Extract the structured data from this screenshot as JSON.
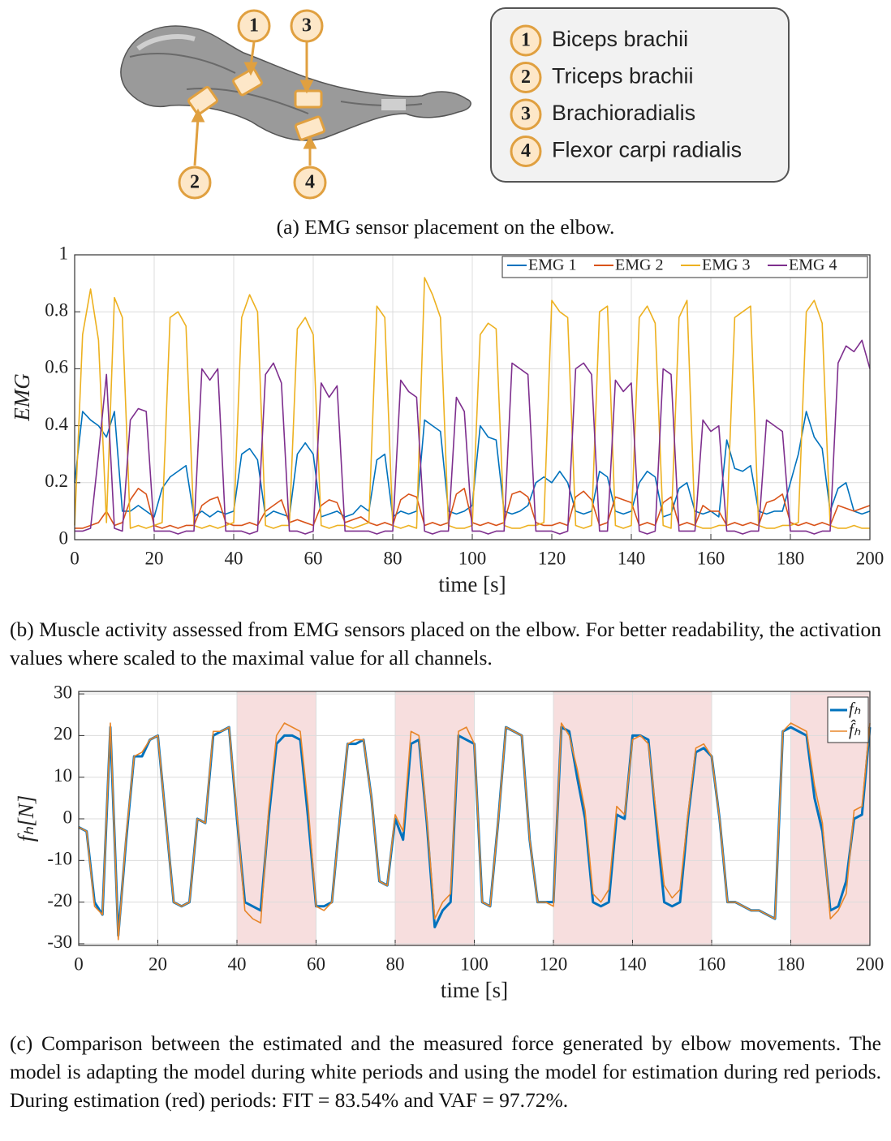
{
  "diagram": {
    "markers": [
      "1",
      "2",
      "3",
      "4"
    ],
    "legend": {
      "items": [
        {
          "number": "1",
          "label": "Biceps brachii"
        },
        {
          "number": "2",
          "label": "Triceps brachii"
        },
        {
          "number": "3",
          "label": "Brachioradialis"
        },
        {
          "number": "4",
          "label": "Flexor carpi radialis"
        }
      ]
    }
  },
  "captions": [
    "(a) EMG sensor placement on the elbow.",
    "(b) Muscle activity assessed from EMG sensors placed on the elbow. For better readability, the activation values where scaled to the maximal value for all channels.",
    "(c) Comparison between the estimated and the measured force generated by elbow movements. The model is adapting the model during white periods and using the model for estimation during red periods. During estimation (red) periods: FIT = 83.54% and VAF = 97.72%."
  ],
  "chart_data": [
    {
      "type": "line",
      "xlabel": "time [s]",
      "ylabel": "EMG",
      "xlim": [
        0,
        200
      ],
      "ylim": [
        0,
        1
      ],
      "xticks": [
        0,
        20,
        40,
        60,
        80,
        100,
        120,
        140,
        160,
        180,
        200
      ],
      "yticks": [
        0,
        0.2,
        0.4,
        0.6,
        0.8,
        1
      ],
      "grid": true,
      "legend": "top-right",
      "x": [
        0,
        2,
        4,
        6,
        8,
        10,
        12,
        14,
        16,
        18,
        20,
        22,
        24,
        26,
        28,
        30,
        32,
        34,
        36,
        38,
        40,
        42,
        44,
        46,
        48,
        50,
        52,
        54,
        56,
        58,
        60,
        62,
        64,
        66,
        68,
        70,
        72,
        74,
        76,
        78,
        80,
        82,
        84,
        86,
        88,
        90,
        92,
        94,
        96,
        98,
        100,
        102,
        104,
        106,
        108,
        110,
        112,
        114,
        116,
        118,
        120,
        122,
        124,
        126,
        128,
        130,
        132,
        134,
        136,
        138,
        140,
        142,
        144,
        146,
        148,
        150,
        152,
        154,
        156,
        158,
        160,
        162,
        164,
        166,
        168,
        170,
        172,
        174,
        176,
        178,
        180,
        182,
        184,
        186,
        188,
        190,
        192,
        194,
        196,
        198,
        200
      ],
      "series": [
        {
          "name": "EMG 1",
          "color": "#0072bd",
          "values": [
            0.2,
            0.45,
            0.42,
            0.4,
            0.36,
            0.45,
            0.1,
            0.1,
            0.12,
            0.1,
            0.08,
            0.18,
            0.22,
            0.24,
            0.26,
            0.08,
            0.1,
            0.08,
            0.1,
            0.09,
            0.1,
            0.3,
            0.32,
            0.28,
            0.08,
            0.1,
            0.09,
            0.08,
            0.3,
            0.34,
            0.3,
            0.08,
            0.09,
            0.1,
            0.08,
            0.09,
            0.12,
            0.1,
            0.28,
            0.3,
            0.08,
            0.1,
            0.09,
            0.1,
            0.42,
            0.4,
            0.38,
            0.1,
            0.09,
            0.1,
            0.12,
            0.4,
            0.36,
            0.35,
            0.1,
            0.09,
            0.1,
            0.12,
            0.2,
            0.22,
            0.2,
            0.24,
            0.2,
            0.1,
            0.09,
            0.1,
            0.24,
            0.22,
            0.1,
            0.09,
            0.1,
            0.2,
            0.24,
            0.22,
            0.08,
            0.09,
            0.18,
            0.2,
            0.1,
            0.09,
            0.1,
            0.08,
            0.35,
            0.25,
            0.24,
            0.26,
            0.1,
            0.09,
            0.1,
            0.1,
            0.2,
            0.3,
            0.45,
            0.36,
            0.32,
            0.1,
            0.18,
            0.2,
            0.1,
            0.09,
            0.1
          ]
        },
        {
          "name": "EMG 2",
          "color": "#d95319",
          "values": [
            0.04,
            0.04,
            0.05,
            0.06,
            0.1,
            0.05,
            0.06,
            0.14,
            0.18,
            0.16,
            0.05,
            0.04,
            0.05,
            0.04,
            0.05,
            0.05,
            0.12,
            0.14,
            0.15,
            0.06,
            0.05,
            0.05,
            0.06,
            0.05,
            0.1,
            0.12,
            0.14,
            0.06,
            0.07,
            0.06,
            0.05,
            0.12,
            0.14,
            0.13,
            0.06,
            0.07,
            0.08,
            0.06,
            0.05,
            0.06,
            0.05,
            0.14,
            0.16,
            0.15,
            0.05,
            0.06,
            0.05,
            0.06,
            0.16,
            0.18,
            0.06,
            0.05,
            0.06,
            0.05,
            0.06,
            0.16,
            0.17,
            0.15,
            0.06,
            0.05,
            0.05,
            0.06,
            0.05,
            0.15,
            0.17,
            0.14,
            0.05,
            0.06,
            0.15,
            0.14,
            0.13,
            0.05,
            0.06,
            0.05,
            0.13,
            0.15,
            0.05,
            0.06,
            0.05,
            0.12,
            0.1,
            0.1,
            0.05,
            0.06,
            0.05,
            0.06,
            0.05,
            0.13,
            0.14,
            0.16,
            0.06,
            0.05,
            0.06,
            0.05,
            0.06,
            0.05,
            0.12,
            0.11,
            0.1,
            0.11,
            0.12
          ]
        },
        {
          "name": "EMG 3",
          "color": "#edb120",
          "values": [
            0.05,
            0.72,
            0.88,
            0.7,
            0.06,
            0.85,
            0.78,
            0.04,
            0.05,
            0.04,
            0.05,
            0.06,
            0.78,
            0.8,
            0.75,
            0.05,
            0.04,
            0.05,
            0.04,
            0.05,
            0.06,
            0.78,
            0.86,
            0.8,
            0.05,
            0.04,
            0.05,
            0.05,
            0.74,
            0.78,
            0.72,
            0.05,
            0.04,
            0.05,
            0.05,
            0.04,
            0.05,
            0.06,
            0.82,
            0.78,
            0.05,
            0.04,
            0.05,
            0.04,
            0.92,
            0.86,
            0.78,
            0.05,
            0.04,
            0.04,
            0.05,
            0.72,
            0.76,
            0.74,
            0.05,
            0.04,
            0.04,
            0.05,
            0.05,
            0.06,
            0.84,
            0.8,
            0.78,
            0.05,
            0.04,
            0.05,
            0.8,
            0.82,
            0.05,
            0.04,
            0.05,
            0.78,
            0.82,
            0.76,
            0.05,
            0.04,
            0.78,
            0.84,
            0.05,
            0.04,
            0.04,
            0.05,
            0.05,
            0.78,
            0.8,
            0.82,
            0.05,
            0.04,
            0.04,
            0.05,
            0.05,
            0.06,
            0.8,
            0.84,
            0.76,
            0.05,
            0.04,
            0.04,
            0.05,
            0.04,
            0.04
          ]
        },
        {
          "name": "EMG 4",
          "color": "#7e2f8e",
          "values": [
            0.03,
            0.03,
            0.04,
            0.3,
            0.58,
            0.04,
            0.03,
            0.42,
            0.46,
            0.45,
            0.03,
            0.03,
            0.03,
            0.02,
            0.03,
            0.03,
            0.6,
            0.56,
            0.6,
            0.03,
            0.03,
            0.03,
            0.02,
            0.03,
            0.58,
            0.62,
            0.55,
            0.03,
            0.03,
            0.02,
            0.03,
            0.55,
            0.5,
            0.54,
            0.03,
            0.03,
            0.03,
            0.03,
            0.02,
            0.03,
            0.03,
            0.56,
            0.52,
            0.5,
            0.03,
            0.02,
            0.03,
            0.03,
            0.5,
            0.45,
            0.03,
            0.03,
            0.02,
            0.03,
            0.03,
            0.62,
            0.6,
            0.58,
            0.03,
            0.03,
            0.03,
            0.02,
            0.03,
            0.6,
            0.62,
            0.58,
            0.03,
            0.03,
            0.56,
            0.52,
            0.55,
            0.03,
            0.02,
            0.03,
            0.6,
            0.58,
            0.03,
            0.03,
            0.03,
            0.42,
            0.38,
            0.4,
            0.03,
            0.03,
            0.02,
            0.03,
            0.03,
            0.42,
            0.4,
            0.38,
            0.03,
            0.03,
            0.03,
            0.02,
            0.03,
            0.03,
            0.62,
            0.68,
            0.66,
            0.7,
            0.6
          ]
        }
      ]
    },
    {
      "type": "line",
      "xlabel": "time [s]",
      "ylabel": "fₕ[N]",
      "xlim": [
        0,
        200
      ],
      "ylim": [
        -30.4,
        30.6
      ],
      "xticks": [
        0,
        20,
        40,
        60,
        80,
        100,
        120,
        140,
        160,
        180,
        200
      ],
      "yticks": [
        30,
        20,
        10,
        0,
        -10,
        -20,
        -30
      ],
      "grid": true,
      "legend": "top-right",
      "shaded_intervals": [
        [
          40,
          60
        ],
        [
          80,
          100
        ],
        [
          120,
          160
        ],
        [
          180,
          200
        ]
      ],
      "shade_color": "#f7dede",
      "x": [
        0,
        2,
        4,
        6,
        8,
        10,
        12,
        14,
        16,
        18,
        20,
        22,
        24,
        26,
        28,
        30,
        32,
        34,
        36,
        38,
        40,
        42,
        44,
        46,
        48,
        50,
        52,
        54,
        56,
        58,
        60,
        62,
        64,
        66,
        68,
        70,
        72,
        74,
        76,
        78,
        80,
        82,
        84,
        86,
        88,
        90,
        92,
        94,
        96,
        98,
        100,
        102,
        104,
        106,
        108,
        110,
        112,
        114,
        116,
        118,
        120,
        122,
        124,
        126,
        128,
        130,
        132,
        134,
        136,
        138,
        140,
        142,
        144,
        146,
        148,
        150,
        152,
        154,
        156,
        158,
        160,
        162,
        164,
        166,
        168,
        170,
        172,
        174,
        176,
        178,
        180,
        182,
        184,
        186,
        188,
        190,
        192,
        194,
        196,
        198,
        200
      ],
      "series": [
        {
          "name": "fₕ",
          "color": "#0072bd",
          "width": 3,
          "values": [
            -2,
            -3,
            -20,
            -23,
            22,
            -28,
            -5,
            15,
            15,
            19,
            20,
            0,
            -20,
            -21,
            -20,
            0,
            -1,
            20,
            21,
            22,
            0,
            -20,
            -21,
            -22,
            0,
            18,
            20,
            20,
            19,
            0,
            -21,
            -21,
            -20,
            0,
            18,
            18,
            19,
            5,
            -15,
            -16,
            0,
            -5,
            18,
            19,
            -1,
            -26,
            -22,
            -20,
            20,
            19,
            18,
            -20,
            -21,
            -1,
            22,
            21,
            20,
            -5,
            -20,
            -20,
            -20,
            22,
            21,
            10,
            0,
            -20,
            -21,
            -20,
            1,
            0,
            20,
            20,
            19,
            -1,
            -20,
            -21,
            -20,
            0,
            16,
            17,
            15,
            0,
            -20,
            -20,
            -21,
            -22,
            -22,
            -23,
            -24,
            21,
            22,
            21,
            20,
            5,
            -3,
            -22,
            -21,
            -15,
            0,
            1,
            22
          ]
        },
        {
          "name": "f̂ₕ",
          "color": "#e8862a",
          "width": 1.6,
          "values": [
            -2,
            -3,
            -21,
            -23,
            23,
            -29,
            -4,
            15,
            16,
            19,
            20,
            0,
            -20,
            -21,
            -20,
            0,
            -1,
            21,
            21,
            22,
            1,
            -22,
            -24,
            -25,
            2,
            20,
            23,
            22,
            21,
            3,
            -21,
            -22,
            -20,
            0,
            18,
            19,
            19,
            5,
            -15,
            -16,
            1,
            -3,
            21,
            20,
            0,
            -24,
            -20,
            -18,
            21,
            22,
            18,
            -20,
            -21,
            -1,
            22,
            21,
            20,
            -5,
            -20,
            -20,
            -21,
            23,
            20,
            12,
            2,
            -18,
            -20,
            -17,
            3,
            1,
            19,
            20,
            18,
            1,
            -16,
            -19,
            -17,
            1,
            17,
            18,
            15,
            0,
            -20,
            -20,
            -21,
            -22,
            -22,
            -23,
            -24,
            21,
            23,
            22,
            21,
            8,
            -1,
            -24,
            -22,
            -18,
            2,
            3,
            23
          ]
        }
      ]
    }
  ]
}
